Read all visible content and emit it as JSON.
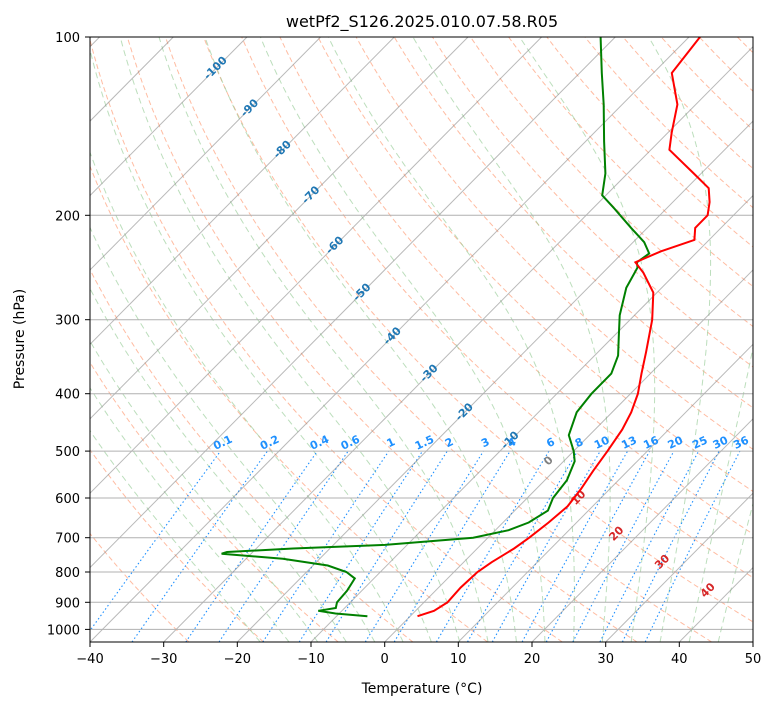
{
  "chart_data": {
    "type": "line",
    "title": "wetPf2_S126.2025.010.07.58.R05",
    "xlabel": "Temperature (°C)",
    "ylabel": "Pressure (hPa)",
    "x_ticks": [
      "−40",
      "−30",
      "−20",
      "−10",
      "0",
      "10",
      "20",
      "30",
      "40",
      "50"
    ],
    "y_ticks": [
      "100",
      "200",
      "300",
      "400",
      "500",
      "600",
      "700",
      "800",
      "900",
      "1000"
    ],
    "x_tick_values": [
      -40,
      -30,
      -20,
      -10,
      0,
      10,
      20,
      30,
      40,
      50
    ],
    "y_tick_values": [
      100,
      200,
      300,
      400,
      500,
      600,
      700,
      800,
      900,
      1000
    ],
    "xlim": [
      -40,
      50
    ],
    "ylim": [
      1050,
      100
    ],
    "y_scale": "log",
    "grid": true,
    "isotherm_labels": [
      "-100",
      "-90",
      "-80",
      "-70",
      "-60",
      "-50",
      "-40",
      "-30",
      "-20",
      "-10"
    ],
    "isotherm_values": [
      -100,
      -90,
      -80,
      -70,
      -60,
      -50,
      -40,
      -30,
      -20,
      -10
    ],
    "mixing_ratio_labels": [
      "0.1",
      "0.2",
      "0.4",
      "0.6",
      "1",
      "1.5",
      "2",
      "3",
      "4",
      "6",
      "8",
      "10",
      "13",
      "16",
      "20",
      "25",
      "30",
      "36"
    ],
    "mixing_ratio_values": [
      0.1,
      0.2,
      0.4,
      0.6,
      1,
      1.5,
      2,
      3,
      4,
      6,
      8,
      10,
      13,
      16,
      20,
      25,
      30,
      36
    ],
    "wet_bulb_labels": [
      "0",
      "10",
      "20",
      "30",
      "40"
    ],
    "wet_bulb_values": [
      0,
      10,
      20,
      30,
      40
    ],
    "colors": {
      "temperature": "#ff0000",
      "dewpoint": "#008000",
      "isotherm": "#808080",
      "dry_adiabat": "#ffa07a",
      "moist_adiabat": "#90c890",
      "mixing_ratio": "#1e90ff",
      "isotherm_label": "#1f77b4"
    },
    "series": [
      {
        "key": "temperature",
        "points": [
          [
            950,
            1.0
          ],
          [
            930,
            2.5
          ],
          [
            900,
            3.2
          ],
          [
            850,
            3.0
          ],
          [
            800,
            3.2
          ],
          [
            770,
            3.8
          ],
          [
            730,
            5.0
          ],
          [
            700,
            5.6
          ],
          [
            660,
            6.2
          ],
          [
            620,
            6.6
          ],
          [
            580,
            6.1
          ],
          [
            540,
            5.3
          ],
          [
            500,
            4.6
          ],
          [
            460,
            3.7
          ],
          [
            430,
            2.6
          ],
          [
            400,
            1.0
          ],
          [
            370,
            -1.2
          ],
          [
            340,
            -3.5
          ],
          [
            300,
            -7.0
          ],
          [
            270,
            -10.5
          ],
          [
            250,
            -14.5
          ],
          [
            240,
            -17.0
          ],
          [
            230,
            -15.0
          ],
          [
            220,
            -12.0
          ],
          [
            210,
            -13.5
          ],
          [
            200,
            -13.5
          ],
          [
            190,
            -15.0
          ],
          [
            180,
            -17.0
          ],
          [
            170,
            -21.0
          ],
          [
            155,
            -27.5
          ],
          [
            145,
            -29.5
          ],
          [
            130,
            -32.5
          ],
          [
            115,
            -37.5
          ],
          [
            100,
            -38.5
          ]
        ]
      },
      {
        "key": "dewpoint",
        "points": [
          [
            950,
            -5.8
          ],
          [
            940,
            -10.5
          ],
          [
            930,
            -13.2
          ],
          [
            920,
            -11.2
          ],
          [
            900,
            -11.8
          ],
          [
            860,
            -12.0
          ],
          [
            820,
            -12.6
          ],
          [
            800,
            -14.6
          ],
          [
            780,
            -18.0
          ],
          [
            760,
            -25.0
          ],
          [
            745,
            -34.0
          ],
          [
            740,
            -33.5
          ],
          [
            730,
            -25.0
          ],
          [
            720,
            -13.0
          ],
          [
            700,
            -2.0
          ],
          [
            680,
            1.8
          ],
          [
            660,
            3.5
          ],
          [
            630,
            4.5
          ],
          [
            600,
            3.5
          ],
          [
            560,
            3.0
          ],
          [
            520,
            1.5
          ],
          [
            500,
            0.0
          ],
          [
            470,
            -2.8
          ],
          [
            430,
            -4.8
          ],
          [
            400,
            -5.3
          ],
          [
            370,
            -5.3
          ],
          [
            345,
            -6.8
          ],
          [
            320,
            -9.3
          ],
          [
            295,
            -12.0
          ],
          [
            265,
            -14.8
          ],
          [
            245,
            -16.0
          ],
          [
            240,
            -16.8
          ],
          [
            232,
            -16.3
          ],
          [
            222,
            -18.5
          ],
          [
            210,
            -22.2
          ],
          [
            195,
            -27.0
          ],
          [
            185,
            -30.5
          ],
          [
            170,
            -33.0
          ],
          [
            150,
            -37.5
          ],
          [
            130,
            -42.5
          ],
          [
            115,
            -47.0
          ],
          [
            100,
            -52.0
          ]
        ]
      }
    ]
  }
}
